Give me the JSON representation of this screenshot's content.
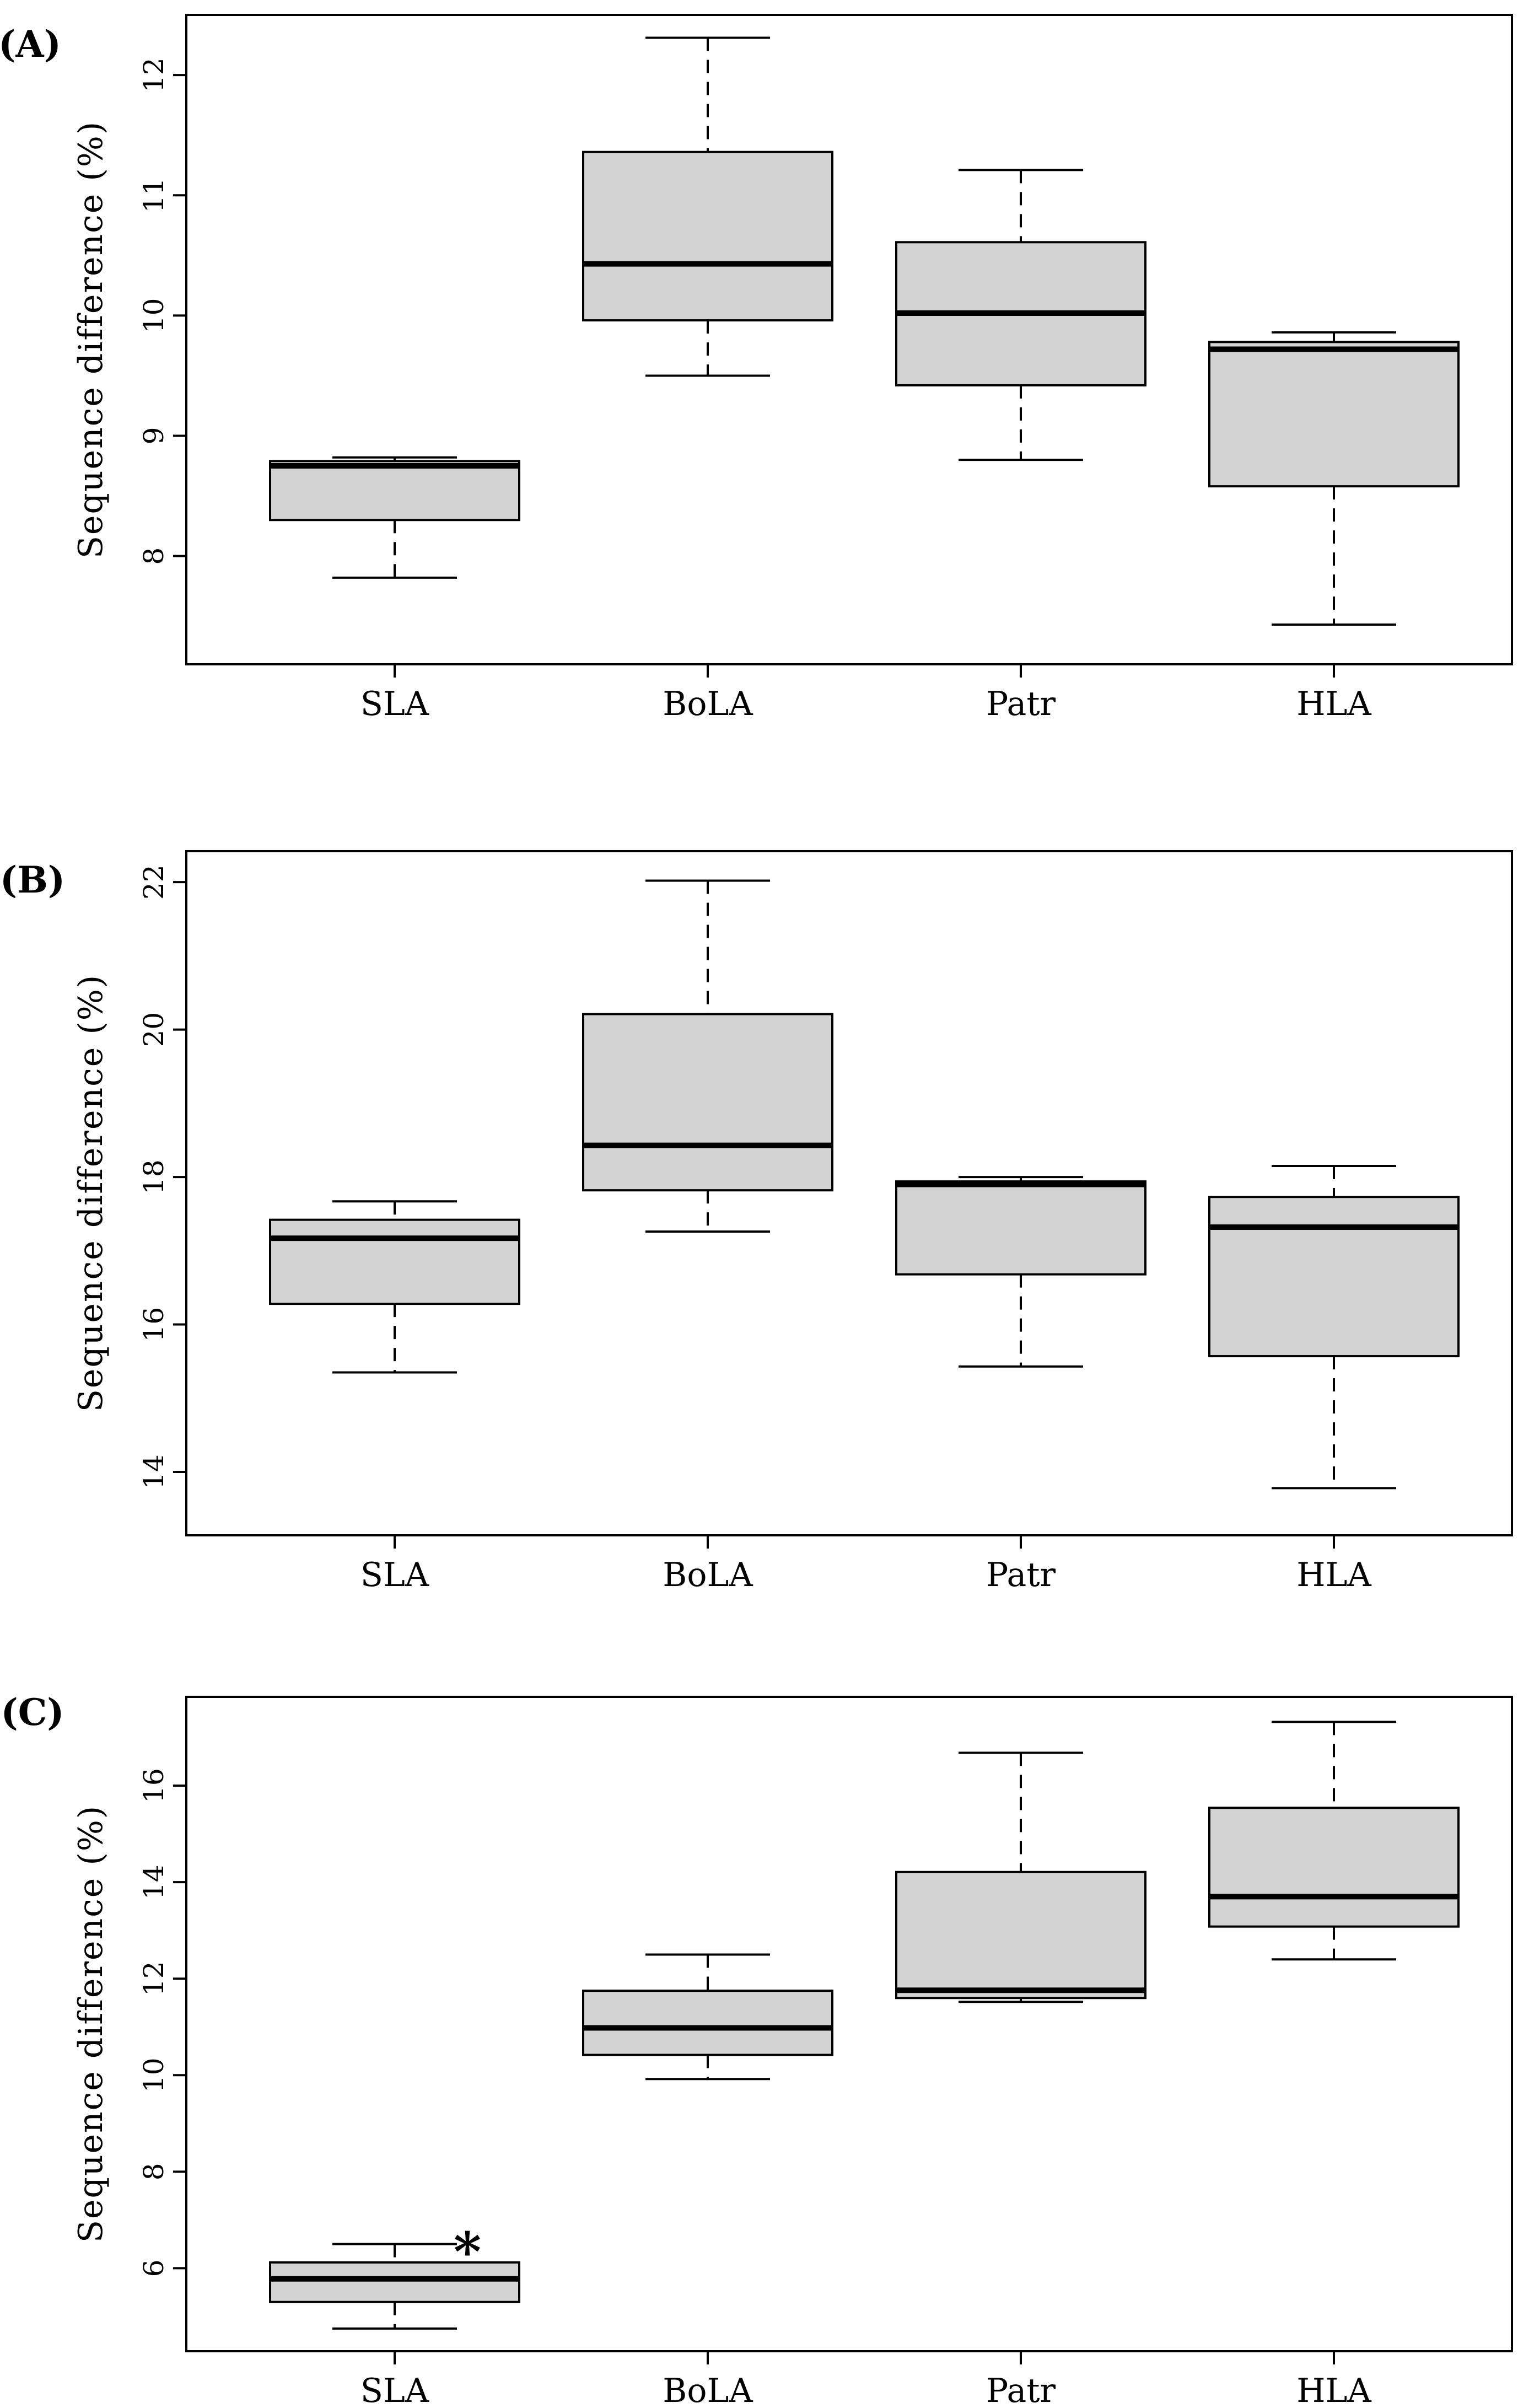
{
  "style": {
    "background": "#ffffff",
    "line_color": "#000000",
    "box_fill": "#d3d3d3"
  },
  "chart_data": [
    {
      "type": "boxplot",
      "panel_label": "(A)",
      "ylabel": "Sequence difference (%)",
      "xlabel": "",
      "categories": [
        "SLA",
        "BoLA",
        "Patr",
        "HLA"
      ],
      "y_ticks": [
        8,
        9,
        10,
        11,
        12
      ],
      "ylim": [
        7.1,
        12.5
      ],
      "grid": false,
      "series": [
        {
          "name": "SLA",
          "min": 7.82,
          "q1": 8.3,
          "median": 8.75,
          "q3": 8.79,
          "max": 8.82
        },
        {
          "name": "BoLA",
          "min": 9.5,
          "q1": 9.96,
          "median": 10.43,
          "q3": 11.36,
          "max": 12.31
        },
        {
          "name": "Patr",
          "min": 8.8,
          "q1": 9.42,
          "median": 10.02,
          "q3": 10.61,
          "max": 11.21
        },
        {
          "name": "HLA",
          "min": 7.43,
          "q1": 8.58,
          "median": 9.72,
          "q3": 9.78,
          "max": 9.86
        }
      ],
      "annotations": []
    },
    {
      "type": "boxplot",
      "panel_label": "(B)",
      "ylabel": "Sequence difference (%)",
      "xlabel": "",
      "categories": [
        "SLA",
        "BoLA",
        "Patr",
        "HLA"
      ],
      "y_ticks": [
        14,
        16,
        18,
        20,
        22
      ],
      "ylim": [
        13.14,
        22.42
      ],
      "grid": false,
      "series": [
        {
          "name": "SLA",
          "min": 15.35,
          "q1": 16.28,
          "median": 17.17,
          "q3": 17.42,
          "max": 17.67
        },
        {
          "name": "BoLA",
          "min": 17.26,
          "q1": 17.82,
          "median": 18.43,
          "q3": 20.21,
          "max": 22.02
        },
        {
          "name": "Patr",
          "min": 15.43,
          "q1": 16.68,
          "median": 17.9,
          "q3": 17.94,
          "max": 18.0
        },
        {
          "name": "HLA",
          "min": 13.78,
          "q1": 15.57,
          "median": 17.32,
          "q3": 17.73,
          "max": 18.15
        }
      ],
      "annotations": []
    },
    {
      "type": "boxplot",
      "panel_label": "(C)",
      "ylabel": "Sequence difference (%)",
      "xlabel": "",
      "categories": [
        "SLA",
        "BoLA",
        "Patr",
        "HLA"
      ],
      "y_ticks": [
        6,
        8,
        10,
        12,
        14,
        16
      ],
      "ylim": [
        4.28,
        17.84
      ],
      "grid": false,
      "series": [
        {
          "name": "SLA",
          "min": 4.75,
          "q1": 5.3,
          "median": 5.78,
          "q3": 6.12,
          "max": 6.5
        },
        {
          "name": "BoLA",
          "min": 9.92,
          "q1": 10.42,
          "median": 10.98,
          "q3": 11.75,
          "max": 12.5
        },
        {
          "name": "Patr",
          "min": 11.52,
          "q1": 11.6,
          "median": 11.76,
          "q3": 14.21,
          "max": 16.68
        },
        {
          "name": "HLA",
          "min": 12.4,
          "q1": 13.08,
          "median": 13.7,
          "q3": 15.54,
          "max": 17.32
        }
      ],
      "annotations": [
        {
          "text": "*",
          "category": "SLA",
          "value": 6.5,
          "dx": 132,
          "font_size": 96
        }
      ]
    }
  ]
}
